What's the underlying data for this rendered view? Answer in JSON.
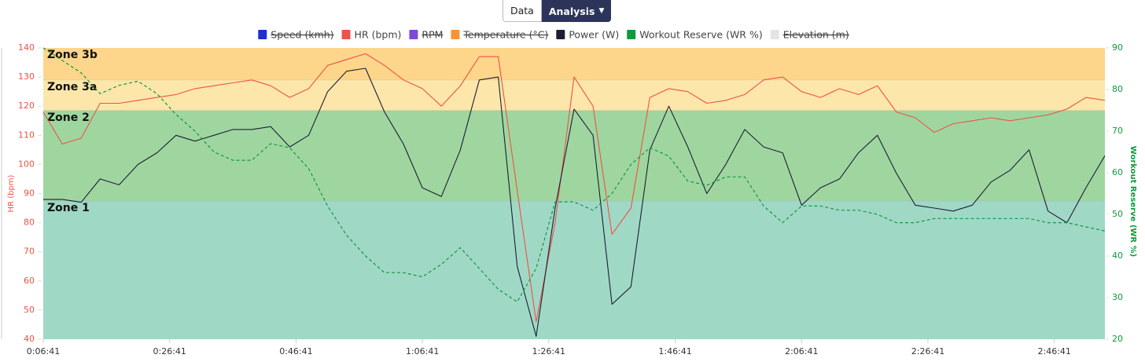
{
  "toolbar": {
    "buttons": [
      "Data",
      "Analysis"
    ]
  },
  "chart_data": {
    "type": "line",
    "y_label": "HR (bpm)",
    "y2_label": "Workout Reserve (WR %)",
    "xlim": [
      401,
      10481
    ],
    "xticks": [
      {
        "value": 401,
        "label": "0:06:41"
      },
      {
        "value": 1601,
        "label": "0:26:41"
      },
      {
        "value": 2801,
        "label": "0:46:41"
      },
      {
        "value": 4001,
        "label": "1:06:41"
      },
      {
        "value": 5201,
        "label": "1:26:41"
      },
      {
        "value": 6401,
        "label": "1:46:41"
      },
      {
        "value": 7601,
        "label": "2:06:41"
      },
      {
        "value": 8801,
        "label": "2:26:41"
      },
      {
        "value": 10001,
        "label": "2:46:41"
      }
    ],
    "ylim": [
      40,
      140
    ],
    "yticks": [
      40,
      50,
      60,
      70,
      80,
      90,
      100,
      110,
      120,
      130,
      140
    ],
    "y2lim": [
      20,
      90
    ],
    "y2ticks": [
      20,
      30,
      40,
      50,
      60,
      70,
      80,
      90
    ],
    "zones": [
      {
        "label": "Zone 3b",
        "from": 129,
        "to": 140,
        "color": "#fdd68b"
      },
      {
        "label": "Zone 3a",
        "from": 118.5,
        "to": 129,
        "color": "#fde6aa"
      },
      {
        "label": "Zone 2",
        "from": 87.5,
        "to": 118.5,
        "color": "#9fd6a0"
      },
      {
        "label": "Zone 1",
        "from": 40,
        "to": 87.5,
        "color": "#a0d8c6"
      }
    ],
    "x": [
      401,
      581,
      761,
      941,
      1121,
      1301,
      1481,
      1661,
      1841,
      2021,
      2201,
      2381,
      2561,
      2741,
      2921,
      3101,
      3281,
      3461,
      3641,
      3821,
      4001,
      4181,
      4361,
      4541,
      4721,
      4901,
      5081,
      5261,
      5441,
      5621,
      5801,
      5981,
      6161,
      6341,
      6521,
      6701,
      6881,
      7061,
      7241,
      7421,
      7601,
      7781,
      7961,
      8141,
      8321,
      8501,
      8681,
      8861,
      9041,
      9221,
      9401,
      9581,
      9761,
      9941,
      10121,
      10301,
      10481
    ],
    "series": [
      {
        "name": "Speed (kmh)",
        "color": "#1f2fd0",
        "hidden": true
      },
      {
        "name": "HR (bpm)",
        "color": "#ef5246",
        "axis": "y",
        "values": [
          118,
          107,
          109,
          121,
          121,
          122,
          123,
          124,
          126,
          127,
          128,
          129,
          127,
          123,
          126,
          134,
          136,
          138,
          134,
          129,
          126,
          120,
          127,
          137,
          137,
          91,
          46,
          80,
          130,
          120,
          76,
          85,
          123,
          126,
          125,
          121,
          122,
          124,
          129,
          130,
          125,
          123,
          126,
          124,
          127,
          118,
          116,
          111,
          114,
          115,
          116,
          115,
          116,
          117,
          119,
          123,
          122
        ]
      },
      {
        "name": "RPM",
        "color": "#7c4ad6",
        "hidden": true
      },
      {
        "name": "Temperature (°C)",
        "color": "#f5943a",
        "hidden": true
      },
      {
        "name": "Power (W)",
        "color": "#1c1f33",
        "axis": "y",
        "values": [
          88,
          88,
          87,
          95,
          93,
          100,
          104,
          110,
          108,
          110,
          112,
          112,
          113,
          106,
          110,
          125,
          132,
          133,
          118,
          107,
          92,
          89,
          105,
          129,
          130,
          65,
          41,
          85,
          119,
          110,
          52,
          58,
          105,
          120,
          106,
          90,
          100,
          112,
          106,
          104,
          86,
          92,
          95,
          104,
          110,
          97,
          86,
          85,
          84,
          86,
          94,
          98,
          105,
          84,
          80,
          92,
          103
        ]
      },
      {
        "name": "Workout Reserve (WR %)",
        "color": "#11993f",
        "axis": "y2",
        "dash": true,
        "values": [
          90,
          87,
          84,
          79,
          81,
          82,
          79,
          74,
          70,
          65,
          63,
          63,
          67,
          66,
          61,
          52,
          45,
          40,
          36,
          36,
          35,
          38,
          42,
          37,
          32,
          29,
          37,
          53,
          53,
          51,
          55,
          62,
          66,
          64,
          58,
          57,
          59,
          59,
          52,
          48,
          52,
          52,
          51,
          51,
          50,
          48,
          48,
          49,
          49,
          49,
          49,
          49,
          49,
          48,
          48,
          47,
          46
        ]
      },
      {
        "name": "Elevation (m)",
        "color": "#e4e4e4",
        "hidden": true
      }
    ]
  }
}
